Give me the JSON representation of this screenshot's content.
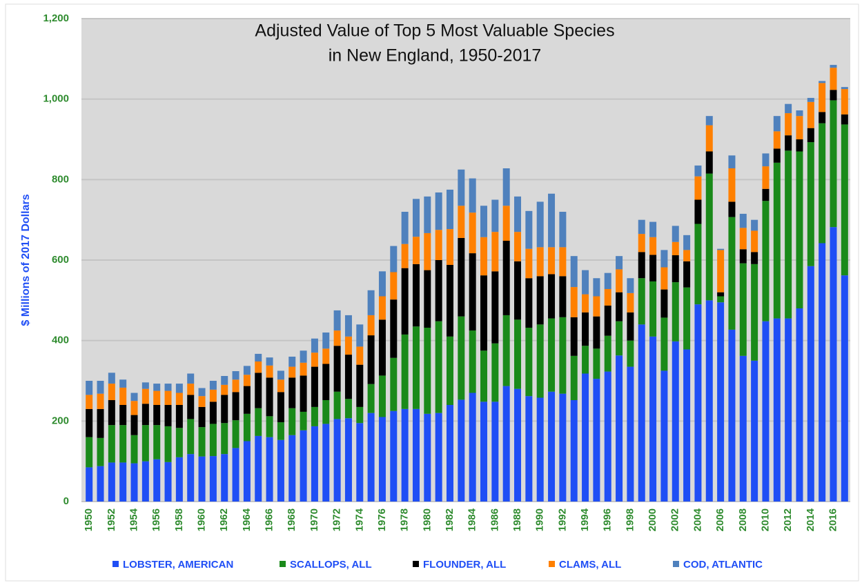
{
  "chart_data": {
    "type": "stacked_bar",
    "title": [
      "Adjusted Value of Top 5 Most Valuable Species",
      "in New England, 1950-2017"
    ],
    "y_label": "$ Millions of 2017 Dollars",
    "categories": [
      "1950",
      null,
      "1952",
      null,
      "1954",
      null,
      "1956",
      null,
      "1958",
      null,
      "1960",
      null,
      "1962",
      null,
      "1964",
      null,
      "1966",
      null,
      "1968",
      null,
      "1970",
      null,
      "1972",
      null,
      "1974",
      null,
      "1976",
      null,
      "1978",
      null,
      "1980",
      null,
      "1982",
      null,
      "1984",
      null,
      "1986",
      null,
      "1988",
      null,
      "1990",
      null,
      "1992",
      null,
      "1994",
      null,
      "1996",
      null,
      "1998",
      null,
      "2000",
      null,
      "2002",
      null,
      "2004",
      null,
      "2006",
      null,
      "2008",
      null,
      "2010",
      null,
      "2012",
      null,
      "2014",
      null,
      "2016",
      null
    ],
    "series": [
      {
        "name": "LOBSTER, AMERICAN",
        "color": "#1f4ef5",
        "values": [
          85,
          88,
          97,
          97,
          95,
          100,
          105,
          98,
          110,
          118,
          112,
          113,
          118,
          133,
          150,
          163,
          160,
          153,
          165,
          177,
          187,
          193,
          205,
          207,
          195,
          220,
          210,
          225,
          230,
          230,
          218,
          220,
          240,
          253,
          270,
          248,
          248,
          287,
          280,
          262,
          258,
          273,
          268,
          252,
          318,
          305,
          323,
          363,
          335,
          440,
          410,
          325,
          398,
          378,
          490,
          500,
          495,
          427,
          362,
          350,
          448,
          455,
          455,
          480,
          585,
          642,
          682,
          562
        ]
      },
      {
        "name": "SCALLOPS, ALL",
        "color": "#1a8a1a",
        "values": [
          75,
          70,
          93,
          93,
          70,
          90,
          85,
          89,
          73,
          87,
          73,
          80,
          77,
          69,
          68,
          69,
          52,
          44,
          67,
          46,
          48,
          59,
          68,
          48,
          40,
          72,
          103,
          132,
          185,
          205,
          214,
          228,
          170,
          207,
          155,
          127,
          145,
          176,
          172,
          170,
          182,
          182,
          190,
          110,
          69,
          75,
          89,
          85,
          65,
          115,
          137,
          132,
          147,
          154,
          200,
          315,
          15,
          280,
          230,
          240,
          299,
          387,
          417,
          390,
          308,
          298,
          315,
          375
        ]
      },
      {
        "name": "FLOUNDER, ALL",
        "color": "#000000",
        "values": [
          70,
          72,
          62,
          50,
          50,
          53,
          50,
          53,
          57,
          60,
          50,
          55,
          70,
          70,
          69,
          88,
          96,
          75,
          76,
          90,
          100,
          90,
          114,
          110,
          105,
          121,
          139,
          145,
          165,
          155,
          143,
          152,
          178,
          195,
          192,
          187,
          179,
          185,
          145,
          123,
          120,
          110,
          102,
          96,
          83,
          80,
          75,
          72,
          70,
          65,
          66,
          70,
          67,
          65,
          60,
          55,
          10,
          38,
          35,
          30,
          30,
          35,
          38,
          30,
          35,
          28,
          26,
          25
        ]
      },
      {
        "name": "CLAMS, ALL",
        "color": "#ff8000",
        "values": [
          35,
          38,
          41,
          43,
          35,
          37,
          35,
          35,
          30,
          28,
          27,
          30,
          25,
          31,
          28,
          28,
          30,
          31,
          27,
          32,
          35,
          38,
          38,
          45,
          45,
          50,
          58,
          68,
          60,
          68,
          92,
          75,
          89,
          80,
          101,
          95,
          98,
          87,
          73,
          73,
          72,
          67,
          72,
          75,
          45,
          50,
          41,
          57,
          48,
          45,
          44,
          55,
          33,
          28,
          58,
          65,
          105,
          83,
          53,
          53,
          56,
          43,
          55,
          58,
          65,
          72,
          55,
          63
        ]
      },
      {
        "name": "COD, ATLANTIC",
        "color": "#4f81bd",
        "values": [
          35,
          32,
          27,
          20,
          20,
          16,
          18,
          18,
          23,
          25,
          20,
          22,
          22,
          21,
          22,
          19,
          20,
          22,
          25,
          30,
          35,
          40,
          50,
          53,
          55,
          62,
          62,
          65,
          80,
          94,
          91,
          93,
          98,
          90,
          85,
          78,
          80,
          93,
          88,
          94,
          113,
          133,
          88,
          77,
          60,
          45,
          40,
          33,
          37,
          35,
          38,
          43,
          40,
          37,
          27,
          23,
          3,
          32,
          35,
          27,
          32,
          38,
          23,
          14,
          10,
          5,
          7,
          5
        ]
      }
    ],
    "ylim": [
      0,
      1200
    ],
    "yticks": [
      0,
      200,
      400,
      600,
      800,
      {
        "value": 1000,
        "label": "1,000"
      },
      {
        "value": 1200,
        "label": "1,200"
      }
    ],
    "grid": true,
    "legend": "bottom",
    "plot_background": "#d9d9d9"
  }
}
